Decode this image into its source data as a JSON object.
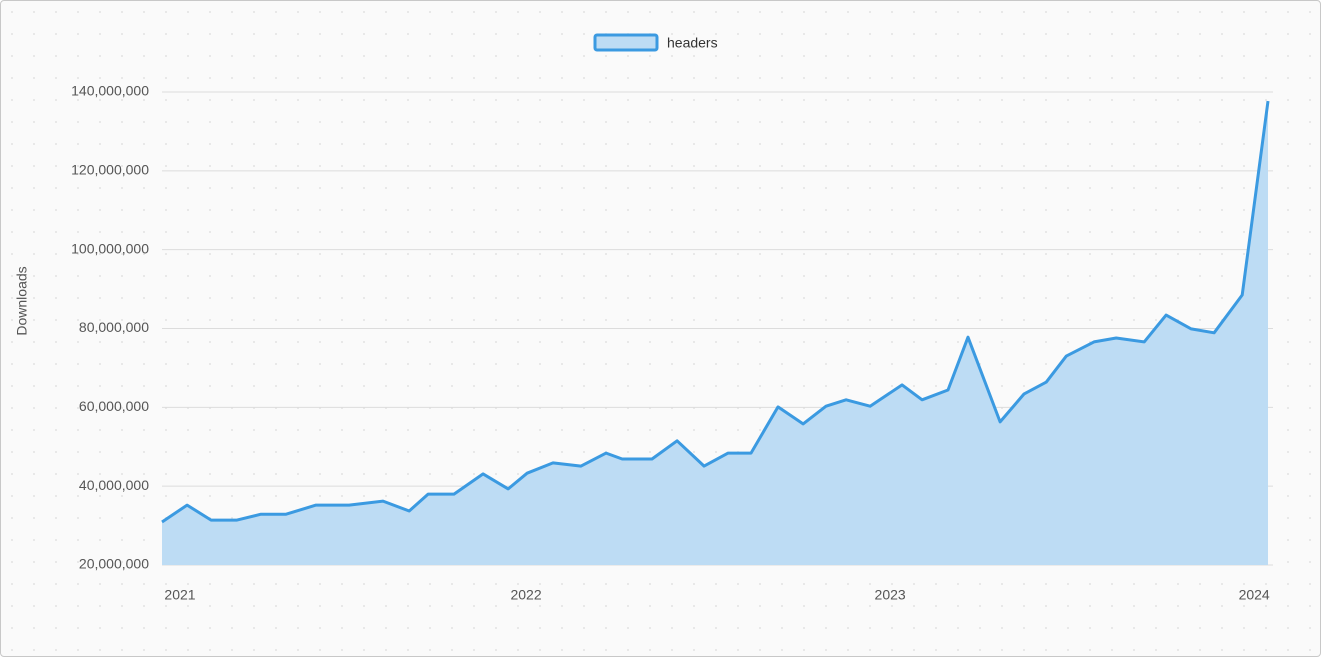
{
  "chart_data": {
    "type": "area",
    "ylabel": "Downloads",
    "legend": "top",
    "x": [
      2021.0,
      2021.069,
      2021.135,
      2021.206,
      2021.272,
      2021.341,
      2021.423,
      2021.514,
      2021.607,
      2021.679,
      2021.731,
      2021.802,
      2021.882,
      2021.951,
      2022.003,
      2022.074,
      2022.151,
      2022.22,
      2022.264,
      2022.346,
      2022.415,
      2022.489,
      2022.555,
      2022.618,
      2022.692,
      2022.761,
      2022.824,
      2022.879,
      2022.945,
      2023.033,
      2023.088,
      2023.159,
      2023.214,
      2023.302,
      2023.368,
      2023.429,
      2023.484,
      2023.56,
      2023.621,
      2023.698,
      2023.758,
      2023.827,
      2023.89,
      2023.967,
      2024.038
    ],
    "series": [
      {
        "name": "headers",
        "color": "#3b9ae1",
        "fill": "#bddcf4",
        "values": [
          30900000,
          35200000,
          31400000,
          31400000,
          32900000,
          32900000,
          35200000,
          35200000,
          36200000,
          33700000,
          38000000,
          38000000,
          43100000,
          39300000,
          43300000,
          45900000,
          45100000,
          48400000,
          46900000,
          46900000,
          51500000,
          45100000,
          48400000,
          48400000,
          60100000,
          55800000,
          60300000,
          61900000,
          60300000,
          65700000,
          61900000,
          64400000,
          77800000,
          56300000,
          63400000,
          66400000,
          73000000,
          76600000,
          77600000,
          76600000,
          83400000,
          79900000,
          78900000,
          88500000,
          137700000
        ]
      }
    ],
    "xlim": [
      2021,
      2024.038
    ],
    "xticks": [
      2021,
      2022,
      2023,
      2024
    ],
    "ylim": [
      20000000,
      140000000
    ],
    "yticks": [
      {
        "value": 20000000,
        "label": "20,000,000"
      },
      {
        "value": 40000000,
        "label": "40,000,000"
      },
      {
        "value": 60000000,
        "label": "60,000,000"
      },
      {
        "value": 80000000,
        "label": "80,000,000"
      },
      {
        "value": 100000000,
        "label": "100,000,000"
      },
      {
        "value": 120000000,
        "label": "120,000,000"
      },
      {
        "value": 140000000,
        "label": "140,000,000"
      }
    ],
    "grid": true
  }
}
